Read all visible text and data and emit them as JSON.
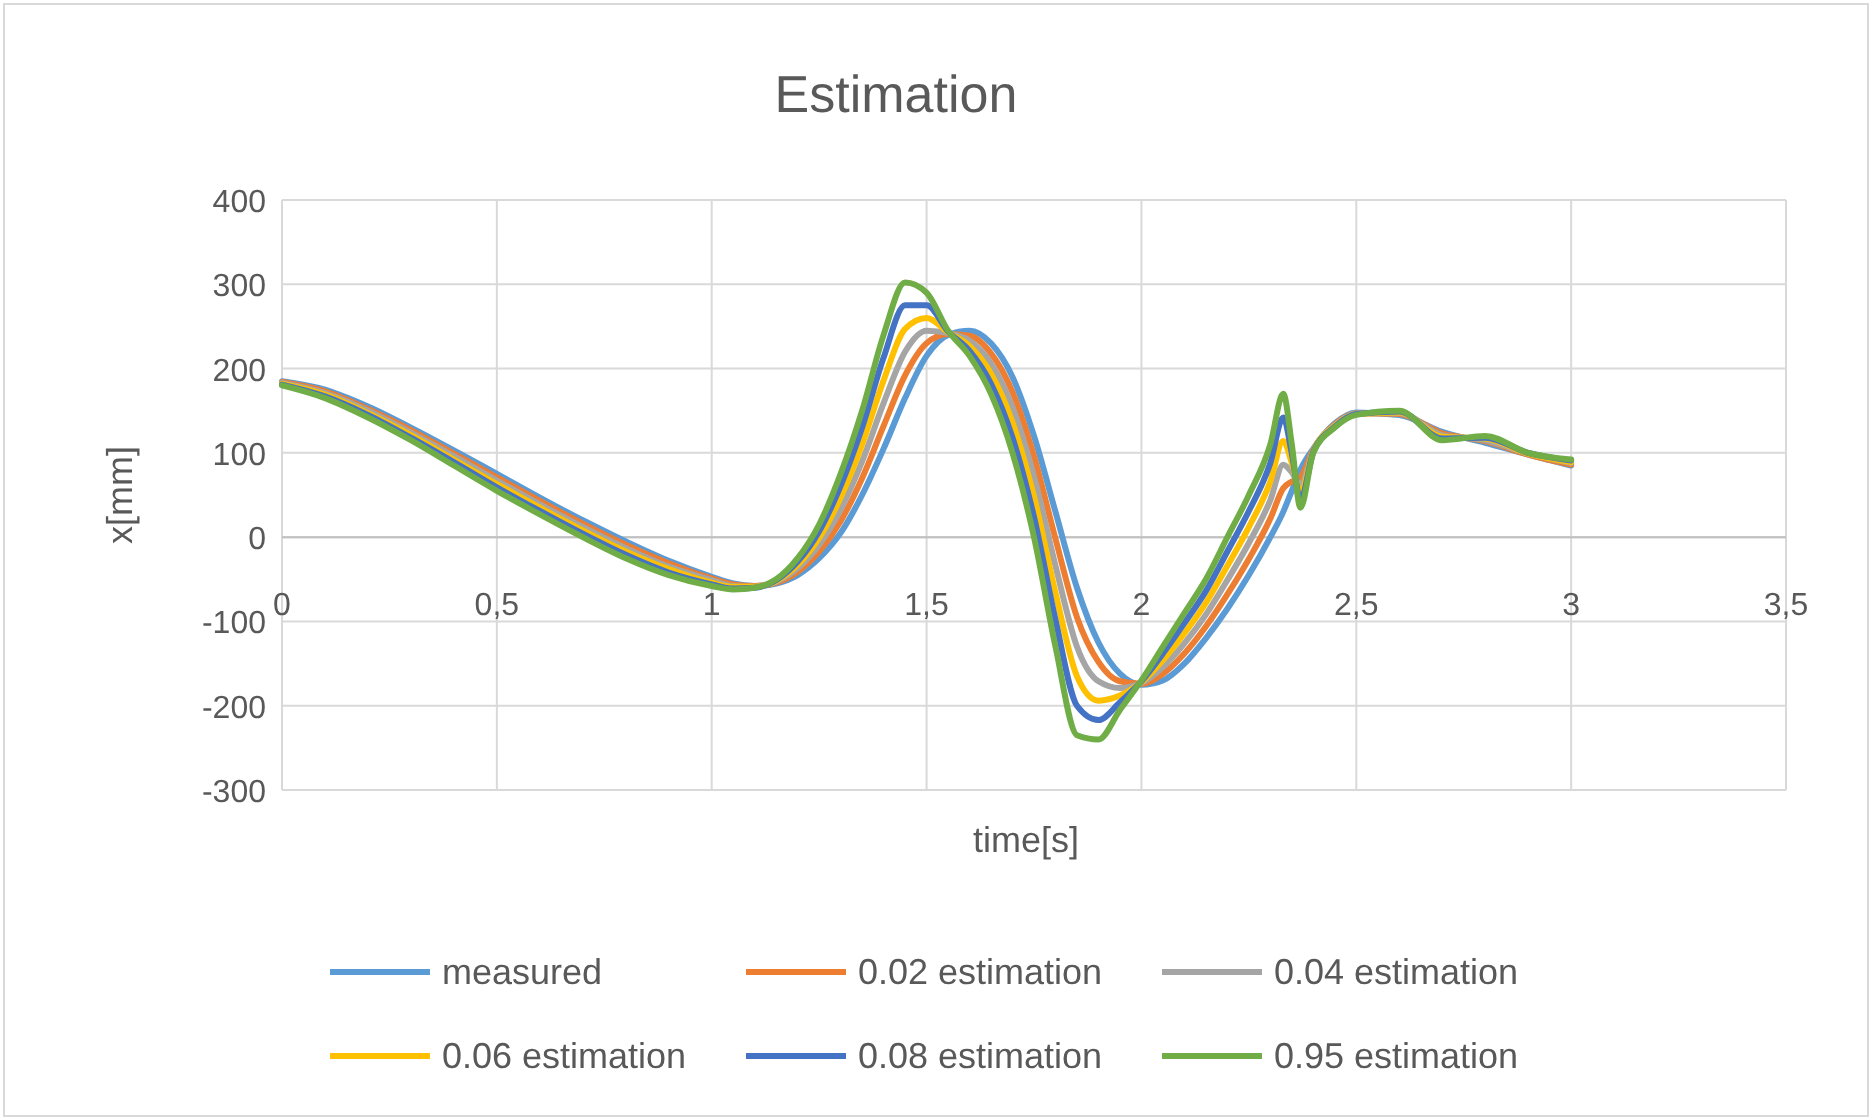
{
  "chart_data": {
    "type": "line",
    "title": "Estimation",
    "xlabel": "time[s]",
    "ylabel": "x[mm]",
    "x": [
      0,
      0.1,
      0.2,
      0.3,
      0.4,
      0.5,
      0.6,
      0.7,
      0.8,
      0.9,
      1.0,
      1.05,
      1.1,
      1.15,
      1.2,
      1.25,
      1.3,
      1.35,
      1.4,
      1.45,
      1.5,
      1.55,
      1.6,
      1.65,
      1.7,
      1.75,
      1.8,
      1.85,
      1.9,
      1.95,
      2.0,
      2.05,
      2.1,
      2.15,
      2.2,
      2.25,
      2.3,
      2.33,
      2.35,
      2.37,
      2.4,
      2.45,
      2.5,
      2.6,
      2.7,
      2.8,
      2.9,
      3.0
    ],
    "series": [
      {
        "name": "measured",
        "color": "#5b9bd5",
        "values": [
          185,
          175,
          155,
          130,
          103,
          75,
          47,
          20,
          -5,
          -28,
          -47,
          -55,
          -58,
          -55,
          -45,
          -25,
          5,
          50,
          105,
          165,
          215,
          240,
          245,
          230,
          190,
          120,
          30,
          -60,
          -125,
          -162,
          -175,
          -170,
          -150,
          -120,
          -85,
          -45,
          0,
          30,
          55,
          80,
          105,
          135,
          148,
          145,
          125,
          112,
          98,
          85
        ]
      },
      {
        "name": "0.02 estimation",
        "color": "#ed7d31",
        "values": [
          184,
          173,
          152,
          127,
          99,
          71,
          43,
          16,
          -9,
          -31,
          -49,
          -56,
          -58,
          -54,
          -41,
          -17,
          19,
          70,
          132,
          192,
          230,
          241,
          239,
          218,
          172,
          96,
          -2,
          -95,
          -148,
          -171,
          -174,
          -162,
          -138,
          -106,
          -68,
          -26,
          22,
          58,
          66,
          71,
          104,
          134,
          147,
          146,
          123,
          114,
          98,
          86
        ]
      },
      {
        "name": "0.04 estimation",
        "color": "#a5a5a5",
        "values": [
          183,
          171,
          150,
          124,
          96,
          67,
          39,
          12,
          -13,
          -35,
          -51,
          -58,
          -59,
          -53,
          -37,
          -9,
          33,
          90,
          159,
          220,
          245,
          242,
          233,
          206,
          154,
          72,
          -34,
          -130,
          -171,
          -179,
          -173,
          -154,
          -126,
          -92,
          -51,
          -7,
          44,
          86,
          77,
          62,
          103,
          133,
          147,
          147,
          121,
          115,
          99,
          88
        ]
      },
      {
        "name": "0.06 estimation",
        "color": "#ffc000",
        "values": [
          182,
          169,
          147,
          121,
          92,
          63,
          35,
          8,
          -17,
          -38,
          -54,
          -59,
          -59,
          -52,
          -33,
          -1,
          47,
          110,
          186,
          247,
          260,
          243,
          227,
          194,
          136,
          48,
          -66,
          -165,
          -194,
          -188,
          -172,
          -146,
          -114,
          -78,
          -34,
          12,
          66,
          114,
          88,
          53,
          102,
          132,
          146,
          148,
          119,
          117,
          99,
          89
        ]
      },
      {
        "name": "0.08 estimation",
        "color": "#4472c4",
        "values": [
          181,
          167,
          145,
          118,
          89,
          59,
          31,
          4,
          -21,
          -42,
          -56,
          -61,
          -60,
          -51,
          -29,
          7,
          61,
          130,
          213,
          275,
          275,
          244,
          221,
          182,
          118,
          24,
          -98,
          -200,
          -217,
          -196,
          -171,
          -138,
          -102,
          -64,
          -17,
          31,
          88,
          142,
          99,
          44,
          101,
          131,
          146,
          149,
          117,
          118,
          100,
          91
        ]
      },
      {
        "name": "0.95 estimation",
        "color": "#70ad47",
        "values": [
          180,
          165,
          142,
          115,
          85,
          55,
          27,
          0,
          -25,
          -45,
          -58,
          -62,
          -60,
          -50,
          -25,
          15,
          75,
          150,
          240,
          302,
          290,
          245,
          215,
          170,
          100,
          0,
          -130,
          -235,
          -240,
          -205,
          -170,
          -130,
          -90,
          -50,
          0,
          50,
          110,
          170,
          110,
          35,
          100,
          130,
          145,
          150,
          115,
          120,
          100,
          92
        ]
      }
    ],
    "xlim": [
      0,
      3.5
    ],
    "xticks": [
      0,
      {
        "value": 0.5,
        "label": "0,5"
      },
      1,
      {
        "value": 1.5,
        "label": "1,5"
      },
      2,
      {
        "value": 2.5,
        "label": "2,5"
      },
      3,
      {
        "value": 3.5,
        "label": "3,5"
      }
    ],
    "ylim": [
      -300,
      400
    ],
    "yticks": [
      -300,
      -200,
      -100,
      0,
      100,
      200,
      300,
      400
    ],
    "grid": true,
    "legend": "bottom",
    "line_style": "solid",
    "marker": "none"
  }
}
